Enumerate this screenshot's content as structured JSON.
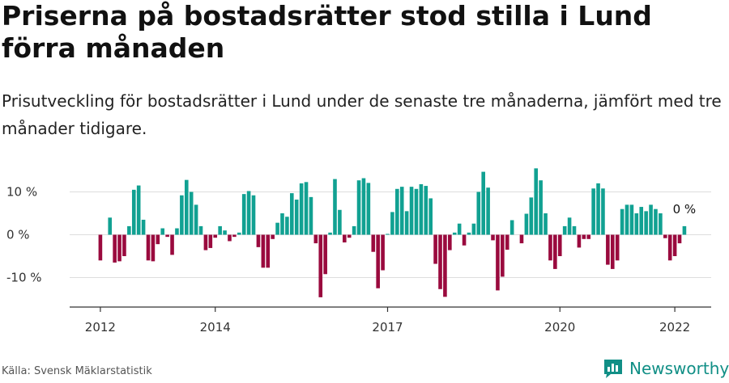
{
  "title": "Priserna på bostadsrätter stod stilla i Lund förra månaden",
  "subtitle": "Prisutveckling för bostadsrätter i Lund under de senaste tre månaderna, jämfört med tre månader tidigare.",
  "source": "Källa: Svensk Mäklarstatistik",
  "brand": {
    "name": "Newsworthy",
    "icon": "newsworthy-logo-icon"
  },
  "colors": {
    "positive": "#11a192",
    "negative": "#9a0a3e",
    "grid": "#dddddd",
    "axis": "#333333",
    "brand": "#118f86"
  },
  "chart_data": {
    "type": "bar",
    "ylabel": "",
    "xlabel": "",
    "ylim": [
      -17,
      17
    ],
    "y_ticks": [
      {
        "value": 10,
        "label": "10 %"
      },
      {
        "value": 0,
        "label": "0 %"
      },
      {
        "value": -10,
        "label": "-10 %"
      }
    ],
    "x_ticks": [
      {
        "value": 2012,
        "label": "2012"
      },
      {
        "value": 2014,
        "label": "2014"
      },
      {
        "value": 2017,
        "label": "2017"
      },
      {
        "value": 2020,
        "label": "2020"
      },
      {
        "value": 2022,
        "label": "2022"
      }
    ],
    "annotation": {
      "label": "0 %"
    },
    "start": "2012-01",
    "frequency": "monthly",
    "values": [
      -6,
      0,
      4,
      -6.5,
      -6.2,
      -5,
      2,
      10.5,
      11.5,
      3.5,
      -6,
      -6.2,
      -2.2,
      1.5,
      -0.5,
      -4.7,
      1.5,
      9.2,
      12.8,
      10,
      7,
      2,
      -3.6,
      -3.1,
      -0.7,
      2,
      1,
      -1.5,
      -0.5,
      0.5,
      9.5,
      10.2,
      9.2,
      -2.9,
      -7.7,
      -7.7,
      -1,
      2.8,
      5,
      4.2,
      9.7,
      8.2,
      12,
      12.3,
      8.8,
      -2,
      -14.6,
      -9.2,
      0.5,
      13,
      5.8,
      -1.8,
      -0.7,
      2,
      12.7,
      13.2,
      12.1,
      -4,
      -12.5,
      -8.3,
      0.2,
      5.3,
      10.7,
      11.2,
      5.5,
      11.2,
      10.7,
      11.8,
      11.4,
      8.5,
      -6.8,
      -12.7,
      -14.5,
      -3.6,
      0.5,
      2.6,
      -2.5,
      0.5,
      2.6,
      10,
      14.7,
      11,
      -1.3,
      -13,
      -9.8,
      -3.5,
      3.4,
      0,
      -2,
      4.9,
      8.7,
      15.5,
      12.7,
      5,
      -6,
      -8,
      -5,
      2,
      4,
      2,
      -3,
      -1,
      -1,
      10.8,
      12,
      10.8,
      -7,
      -8,
      -6,
      6,
      7,
      7,
      5,
      6.5,
      5.5,
      7,
      6,
      5,
      -0.8,
      -6,
      -5,
      -2,
      2
    ]
  }
}
